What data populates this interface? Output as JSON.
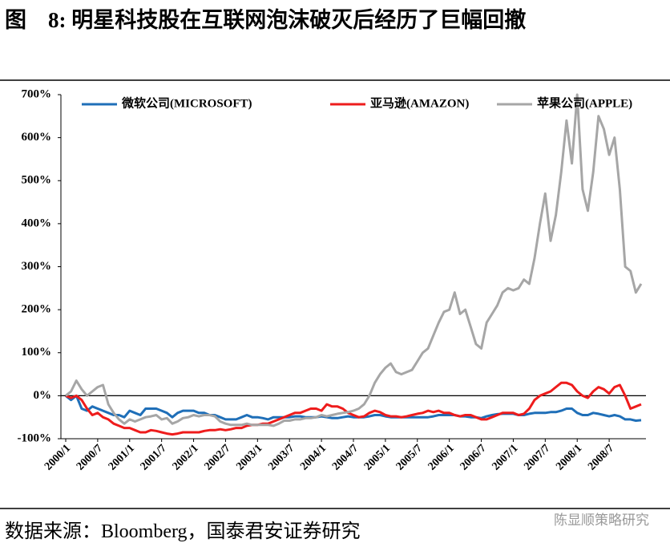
{
  "chart_data": {
    "type": "line",
    "title": "图　8: 明星科技股在互联网泡沫破灭后经历了巨幅回撤",
    "source": "数据来源：Bloomberg，国泰君安证券研究",
    "watermark": "陈显顺策略研究",
    "legend": "top",
    "categories": [
      "2000/1",
      null,
      null,
      null,
      null,
      null,
      "2000/7",
      null,
      null,
      null,
      null,
      null,
      "2001/1",
      null,
      null,
      null,
      null,
      null,
      "2001/7",
      null,
      null,
      null,
      null,
      null,
      "2002/1",
      null,
      null,
      null,
      null,
      null,
      "2002/7",
      null,
      null,
      null,
      null,
      null,
      "2003/1",
      null,
      null,
      null,
      null,
      null,
      "2003/7",
      null,
      null,
      null,
      null,
      null,
      "2004/1",
      null,
      null,
      null,
      null,
      null,
      "2004/7",
      null,
      null,
      null,
      null,
      null,
      "2005/1",
      null,
      null,
      null,
      null,
      null,
      "2005/7",
      null,
      null,
      null,
      null,
      null,
      "2006/1",
      null,
      null,
      null,
      null,
      null,
      "2006/7",
      null,
      null,
      null,
      null,
      null,
      "2007/1",
      null,
      null,
      null,
      null,
      null,
      "2007/7",
      null,
      null,
      null,
      null,
      null,
      "2008/1",
      null,
      null,
      null,
      null,
      null,
      "2008/7",
      null,
      null,
      null,
      null,
      null,
      null
    ],
    "ylim": [
      -100,
      700
    ],
    "yticks": [
      {
        "value": -100,
        "label": "-100%"
      },
      {
        "value": 0,
        "label": "0%"
      },
      {
        "value": 100,
        "label": "100%"
      },
      {
        "value": 200,
        "label": "200%"
      },
      {
        "value": 300,
        "label": "300%"
      },
      {
        "value": 400,
        "label": "400%"
      },
      {
        "value": 500,
        "label": "500%"
      },
      {
        "value": 600,
        "label": "600%"
      },
      {
        "value": 700,
        "label": "700%"
      }
    ],
    "series": [
      {
        "name": "微软公司(MICROSOFT)",
        "color": "#1f6fb8",
        "values": [
          0,
          -10,
          0,
          -30,
          -35,
          -25,
          -30,
          -35,
          -40,
          -45,
          -45,
          -50,
          -35,
          -40,
          -45,
          -30,
          -30,
          -30,
          -35,
          -40,
          -50,
          -40,
          -35,
          -35,
          -35,
          -40,
          -40,
          -45,
          -45,
          -50,
          -55,
          -55,
          -55,
          -50,
          -45,
          -50,
          -50,
          -52,
          -55,
          -50,
          -50,
          -50,
          -50,
          -48,
          -48,
          -50,
          -50,
          -50,
          -48,
          -50,
          -52,
          -52,
          -50,
          -48,
          -50,
          -50,
          -50,
          -48,
          -45,
          -45,
          -48,
          -50,
          -50,
          -50,
          -50,
          -50,
          -50,
          -50,
          -50,
          -48,
          -45,
          -45,
          -45,
          -45,
          -48,
          -48,
          -50,
          -50,
          -52,
          -48,
          -45,
          -43,
          -42,
          -42,
          -42,
          -45,
          -45,
          -42,
          -40,
          -40,
          -40,
          -38,
          -38,
          -35,
          -30,
          -30,
          -40,
          -45,
          -45,
          -40,
          -42,
          -45,
          -48,
          -45,
          -48,
          -55,
          -55,
          -58,
          -57
        ]
      },
      {
        "name": "亚马逊(AMAZON)",
        "color": "#ee1c1c",
        "values": [
          0,
          -5,
          0,
          -10,
          -30,
          -45,
          -40,
          -50,
          -55,
          -65,
          -70,
          -75,
          -75,
          -80,
          -85,
          -85,
          -80,
          -82,
          -85,
          -88,
          -90,
          -88,
          -85,
          -85,
          -85,
          -85,
          -82,
          -80,
          -80,
          -78,
          -80,
          -78,
          -75,
          -75,
          -70,
          -68,
          -68,
          -65,
          -65,
          -60,
          -55,
          -50,
          -45,
          -40,
          -40,
          -35,
          -30,
          -30,
          -35,
          -20,
          -25,
          -25,
          -30,
          -40,
          -45,
          -50,
          -48,
          -40,
          -35,
          -38,
          -45,
          -48,
          -48,
          -50,
          -48,
          -45,
          -42,
          -40,
          -35,
          -38,
          -35,
          -40,
          -40,
          -45,
          -48,
          -45,
          -45,
          -50,
          -55,
          -55,
          -50,
          -45,
          -40,
          -40,
          -40,
          -45,
          -42,
          -30,
          -10,
          0,
          5,
          10,
          20,
          30,
          30,
          25,
          10,
          0,
          -5,
          10,
          20,
          15,
          5,
          20,
          25,
          0,
          -30,
          -25,
          -20
        ]
      },
      {
        "name": "苹果公司(APPLE)",
        "color": "#a6a6a6",
        "values": [
          0,
          10,
          35,
          15,
          0,
          10,
          20,
          25,
          -20,
          -40,
          -55,
          -65,
          -55,
          -60,
          -55,
          -50,
          -48,
          -45,
          -55,
          -52,
          -65,
          -60,
          -52,
          -50,
          -45,
          -48,
          -45,
          -45,
          -48,
          -60,
          -65,
          -68,
          -68,
          -68,
          -65,
          -68,
          -68,
          -68,
          -68,
          -70,
          -65,
          -58,
          -58,
          -55,
          -55,
          -52,
          -52,
          -50,
          -45,
          -48,
          -45,
          -42,
          -40,
          -38,
          -35,
          -30,
          -20,
          0,
          30,
          50,
          65,
          75,
          55,
          50,
          55,
          60,
          80,
          100,
          110,
          140,
          170,
          195,
          200,
          240,
          190,
          200,
          160,
          120,
          110,
          170,
          190,
          210,
          240,
          250,
          245,
          250,
          270,
          260,
          320,
          400,
          470,
          360,
          420,
          520,
          640,
          540,
          700,
          480,
          430,
          520,
          650,
          620,
          560,
          600,
          480,
          300,
          290,
          240,
          260
        ]
      }
    ]
  }
}
